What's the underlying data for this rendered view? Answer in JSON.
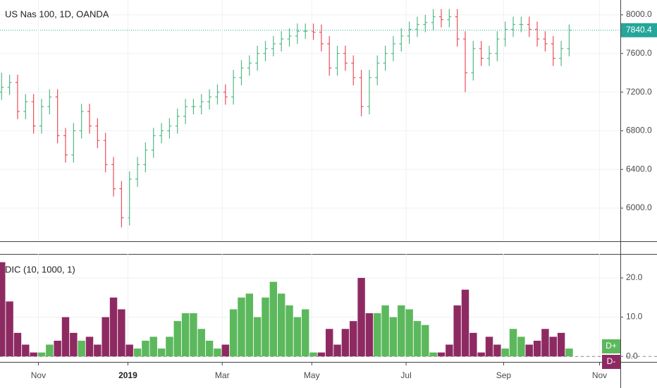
{
  "chart_data": [
    {
      "type": "ohlc",
      "title": "US Nas 100, 1D, OANDA",
      "x": [
        0,
        5,
        10,
        15,
        20,
        25,
        30,
        35,
        40,
        45,
        50,
        55,
        60,
        65,
        70,
        75,
        80,
        85,
        90,
        95,
        100,
        105,
        110,
        115,
        120,
        125,
        130,
        135,
        140,
        145,
        150,
        155,
        160,
        165,
        170,
        175,
        180,
        185,
        190,
        195,
        200,
        205,
        210,
        215,
        220,
        225,
        230,
        235,
        240,
        245,
        250,
        255,
        260,
        265,
        270,
        275,
        280,
        285,
        290,
        295,
        300,
        305,
        310,
        315,
        320,
        325,
        330,
        335,
        340,
        345,
        350,
        355
      ],
      "open": [
        7200,
        7250,
        7300,
        7000,
        7100,
        6850,
        7050,
        7150,
        6750,
        6550,
        6800,
        7000,
        6850,
        6700,
        6450,
        6200,
        5900,
        6300,
        6450,
        6600,
        6750,
        6800,
        6850,
        6950,
        7050,
        7050,
        7100,
        7150,
        7200,
        7150,
        7350,
        7450,
        7500,
        7600,
        7650,
        7700,
        7750,
        7780,
        7830,
        7830,
        7820,
        7700,
        7450,
        7600,
        7500,
        7350,
        7050,
        7350,
        7500,
        7600,
        7700,
        7780,
        7850,
        7900,
        7920,
        7980,
        7950,
        7980,
        7750,
        7400,
        7650,
        7550,
        7600,
        7750,
        7850,
        7900,
        7900,
        7850,
        7750,
        7700,
        7550,
        7650
      ],
      "high": [
        7400,
        7380,
        7380,
        7180,
        7180,
        7130,
        7230,
        7230,
        6830,
        6880,
        7080,
        7080,
        6930,
        6780,
        6530,
        6280,
        6380,
        6530,
        6680,
        6830,
        6880,
        6930,
        7030,
        7130,
        7130,
        7180,
        7230,
        7280,
        7280,
        7430,
        7530,
        7580,
        7680,
        7730,
        7780,
        7830,
        7860,
        7910,
        7910,
        7910,
        7900,
        7780,
        7680,
        7680,
        7580,
        7430,
        7430,
        7580,
        7680,
        7780,
        7860,
        7930,
        7980,
        8000,
        8060,
        8060,
        8060,
        8060,
        7830,
        7730,
        7730,
        7680,
        7830,
        7930,
        7980,
        7980,
        7980,
        7930,
        7830,
        7780,
        7730,
        7900
      ],
      "low": [
        7120,
        7170,
        6920,
        6920,
        6770,
        6770,
        6970,
        6670,
        6470,
        6470,
        6720,
        6770,
        6620,
        6370,
        6120,
        5800,
        5820,
        6220,
        6370,
        6520,
        6670,
        6720,
        6770,
        6870,
        6970,
        6970,
        7020,
        7070,
        7070,
        7070,
        7270,
        7370,
        7420,
        7520,
        7570,
        7620,
        7670,
        7700,
        7750,
        7740,
        7620,
        7370,
        7370,
        7420,
        7270,
        6950,
        6970,
        7270,
        7420,
        7520,
        7620,
        7700,
        7770,
        7820,
        7840,
        7870,
        7870,
        7670,
        7200,
        7320,
        7470,
        7470,
        7520,
        7670,
        7770,
        7820,
        7770,
        7670,
        7620,
        7470,
        7470,
        7570
      ],
      "close": [
        7250,
        7300,
        7000,
        7100,
        6850,
        7050,
        7150,
        6750,
        6550,
        6800,
        7000,
        6850,
        6700,
        6450,
        6200,
        5900,
        6300,
        6450,
        6600,
        6750,
        6800,
        6850,
        6950,
        7050,
        7050,
        7100,
        7150,
        7200,
        7150,
        7350,
        7450,
        7500,
        7600,
        7650,
        7700,
        7750,
        7780,
        7830,
        7830,
        7820,
        7700,
        7450,
        7600,
        7500,
        7350,
        7050,
        7350,
        7500,
        7600,
        7700,
        7780,
        7850,
        7900,
        7920,
        7980,
        7950,
        7980,
        7750,
        7400,
        7650,
        7550,
        7600,
        7750,
        7850,
        7900,
        7900,
        7850,
        7750,
        7700,
        7550,
        7650,
        7840.4
      ],
      "up_color": "#53b987",
      "down_color": "#eb4d5c",
      "last_price_color": "#26a69a",
      "xlim": [
        -1,
        387
      ],
      "ylim": [
        5657,
        8153
      ],
      "yticks": [
        {
          "value": 6000,
          "label": "6000.0"
        },
        {
          "value": 6400,
          "label": "6400.0"
        },
        {
          "value": 6800,
          "label": "6800.0"
        },
        {
          "value": 7200,
          "label": "7200.0"
        },
        {
          "value": 7600,
          "label": "7600.0"
        },
        {
          "value": 8000,
          "label": "8000.0"
        }
      ],
      "grid": true
    },
    {
      "type": "histogram",
      "title": "DIC (10, 1000, 1)",
      "x": [
        0,
        5,
        10,
        15,
        20,
        25,
        30,
        35,
        40,
        45,
        50,
        55,
        60,
        65,
        70,
        75,
        80,
        85,
        90,
        95,
        100,
        105,
        110,
        115,
        120,
        125,
        130,
        135,
        140,
        145,
        150,
        155,
        160,
        165,
        170,
        175,
        180,
        185,
        190,
        195,
        200,
        205,
        210,
        215,
        220,
        225,
        230,
        235,
        240,
        245,
        250,
        255,
        260,
        265,
        270,
        275,
        280,
        285,
        290,
        295,
        300,
        305,
        310,
        315,
        320,
        325,
        330,
        335,
        340,
        345,
        350,
        355
      ],
      "series": [
        {
          "name": "D+",
          "color": "#5cb85c",
          "values": [
            null,
            null,
            null,
            null,
            null,
            1,
            3,
            null,
            null,
            null,
            4,
            null,
            null,
            null,
            null,
            null,
            null,
            2,
            4,
            5,
            2,
            5,
            9,
            11,
            11,
            7,
            4,
            2,
            null,
            12,
            15,
            16,
            10,
            15,
            19,
            16,
            13,
            10,
            12,
            1,
            null,
            null,
            null,
            null,
            null,
            null,
            null,
            11,
            13,
            10,
            13,
            12,
            9,
            8,
            1,
            null,
            null,
            null,
            null,
            null,
            null,
            null,
            null,
            2,
            7,
            5,
            null,
            null,
            null,
            null,
            null,
            2
          ]
        },
        {
          "name": "D-",
          "color": "#8e2a62",
          "values": [
            24,
            14,
            6,
            3,
            1,
            null,
            null,
            4,
            10,
            6,
            null,
            5,
            3,
            10,
            15,
            12,
            3,
            null,
            null,
            null,
            null,
            null,
            null,
            null,
            null,
            null,
            null,
            null,
            3,
            null,
            null,
            null,
            null,
            null,
            null,
            null,
            null,
            null,
            null,
            null,
            1,
            7,
            3,
            7,
            9,
            20,
            11,
            null,
            null,
            null,
            null,
            null,
            null,
            null,
            null,
            1,
            3,
            13,
            17,
            6,
            1,
            5,
            3,
            null,
            null,
            null,
            3,
            4,
            7,
            5,
            6,
            null
          ]
        }
      ],
      "xlim": [
        -1,
        387
      ],
      "ylim": [
        -1.4,
        26.1
      ],
      "yticks": [
        {
          "value": 0,
          "label": "0.0"
        },
        {
          "value": 10,
          "label": "10.0"
        },
        {
          "value": 20,
          "label": "20.0"
        }
      ],
      "xticks": [
        {
          "value": 23,
          "label": "Nov"
        },
        {
          "value": 79,
          "label": "2019"
        },
        {
          "value": 138,
          "label": "Mar"
        },
        {
          "value": 194,
          "label": "May"
        },
        {
          "value": 253,
          "label": "Jul"
        },
        {
          "value": 314,
          "label": "Sep"
        },
        {
          "value": 374,
          "label": "Nov"
        }
      ],
      "grid": true
    }
  ]
}
